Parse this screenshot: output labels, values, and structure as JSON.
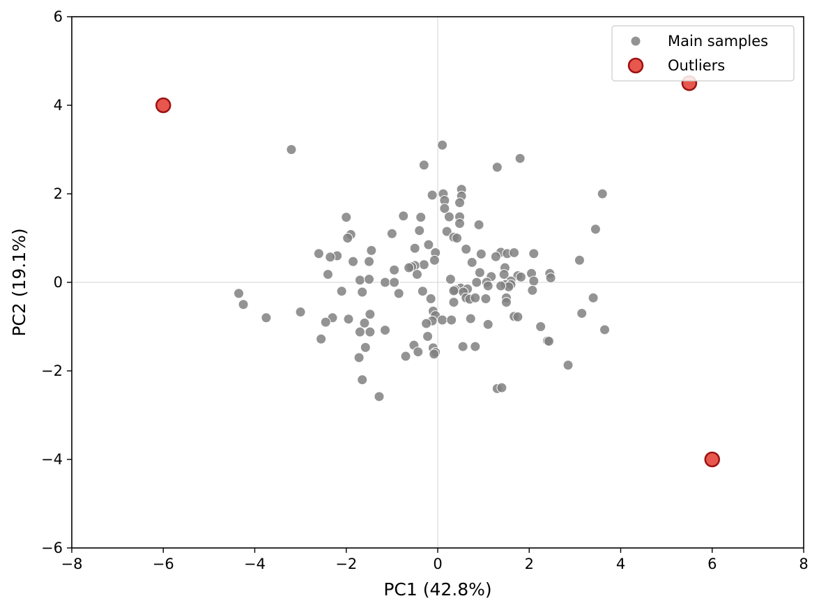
{
  "chart_data": {
    "type": "scatter",
    "xlabel": "PC1 (42.8%)",
    "ylabel": "PC2 (19.1%)",
    "xlim": [
      -8,
      8
    ],
    "ylim": [
      -6,
      6
    ],
    "x_ticks": [
      -8,
      -6,
      -4,
      -2,
      0,
      2,
      4,
      6,
      8
    ],
    "y_ticks": [
      -6,
      -4,
      -2,
      0,
      2,
      4,
      6
    ],
    "x_tick_labels": [
      "−8",
      "−6",
      "−4",
      "−2",
      "0",
      "2",
      "4",
      "6",
      "8"
    ],
    "y_tick_labels": [
      "−6",
      "−4",
      "−2",
      "0",
      "2",
      "4",
      "6"
    ],
    "grid": false,
    "zero_lines": true,
    "legend": "top-right",
    "series": [
      {
        "name": "Main samples",
        "color": "#808080",
        "points": [
          [
            -3.2,
            3.0
          ],
          [
            0.1,
            3.1
          ],
          [
            -0.3,
            2.65
          ],
          [
            1.3,
            2.6
          ],
          [
            1.8,
            2.8
          ],
          [
            3.6,
            2.0
          ],
          [
            0.52,
            2.1
          ],
          [
            0.12,
            2.0
          ],
          [
            -0.12,
            1.97
          ],
          [
            0.52,
            1.95
          ],
          [
            0.15,
            1.85
          ],
          [
            0.48,
            1.8
          ],
          [
            0.15,
            1.67
          ],
          [
            0.48,
            1.48
          ],
          [
            0.25,
            1.48
          ],
          [
            -2.0,
            1.47
          ],
          [
            -0.75,
            1.5
          ],
          [
            -0.37,
            1.47
          ],
          [
            0.9,
            1.3
          ],
          [
            0.48,
            1.33
          ],
          [
            -0.4,
            1.17
          ],
          [
            0.2,
            1.15
          ],
          [
            -1.0,
            1.1
          ],
          [
            -1.9,
            1.08
          ],
          [
            -1.97,
            1.0
          ],
          [
            0.35,
            1.02
          ],
          [
            0.42,
            1.0
          ],
          [
            3.45,
            1.2
          ],
          [
            -0.2,
            0.85
          ],
          [
            -0.5,
            0.77
          ],
          [
            -1.45,
            0.72
          ],
          [
            0.62,
            0.75
          ],
          [
            -0.05,
            0.67
          ],
          [
            1.38,
            0.68
          ],
          [
            1.52,
            0.65
          ],
          [
            1.67,
            0.67
          ],
          [
            2.1,
            0.65
          ],
          [
            0.95,
            0.64
          ],
          [
            -2.6,
            0.65
          ],
          [
            -2.2,
            0.6
          ],
          [
            -2.35,
            0.57
          ],
          [
            1.27,
            0.58
          ],
          [
            -0.07,
            0.5
          ],
          [
            3.1,
            0.5
          ],
          [
            -1.85,
            0.47
          ],
          [
            -1.5,
            0.47
          ],
          [
            0.75,
            0.45
          ],
          [
            -0.3,
            0.4
          ],
          [
            -0.5,
            0.38
          ],
          [
            -0.57,
            0.35
          ],
          [
            -0.63,
            0.33
          ],
          [
            1.47,
            0.33
          ],
          [
            -0.95,
            0.28
          ],
          [
            0.92,
            0.22
          ],
          [
            2.05,
            0.2
          ],
          [
            2.45,
            0.2
          ],
          [
            -2.4,
            0.18
          ],
          [
            1.45,
            0.18
          ],
          [
            1.75,
            0.15
          ],
          [
            1.82,
            0.12
          ],
          [
            -0.45,
            0.18
          ],
          [
            1.17,
            0.13
          ],
          [
            2.47,
            0.1
          ],
          [
            0.28,
            0.07
          ],
          [
            -1.7,
            0.05
          ],
          [
            -1.5,
            0.07
          ],
          [
            2.1,
            0.03
          ],
          [
            1.6,
            0.03
          ],
          [
            -1.15,
            0.0
          ],
          [
            -0.95,
            0.0
          ],
          [
            0.85,
            0.0
          ],
          [
            1.07,
            0.0
          ],
          [
            1.48,
            -0.05
          ],
          [
            1.6,
            -0.05
          ],
          [
            1.1,
            -0.08
          ],
          [
            1.55,
            -0.1
          ],
          [
            1.38,
            -0.08
          ],
          [
            0.5,
            -0.13
          ],
          [
            0.65,
            -0.15
          ],
          [
            0.38,
            -0.17
          ],
          [
            0.35,
            -0.19
          ],
          [
            -0.33,
            -0.2
          ],
          [
            0.56,
            -0.22
          ],
          [
            2.07,
            -0.18
          ],
          [
            -2.1,
            -0.2
          ],
          [
            -1.65,
            -0.22
          ],
          [
            -0.85,
            -0.25
          ],
          [
            -4.35,
            -0.25
          ],
          [
            0.62,
            -0.35
          ],
          [
            0.7,
            -0.38
          ],
          [
            0.82,
            -0.35
          ],
          [
            1.05,
            -0.37
          ],
          [
            1.5,
            -0.35
          ],
          [
            1.5,
            -0.45
          ],
          [
            -0.15,
            -0.37
          ],
          [
            0.35,
            -0.45
          ],
          [
            3.4,
            -0.35
          ],
          [
            -4.25,
            -0.5
          ],
          [
            -3.75,
            -0.8
          ],
          [
            -3.0,
            -0.67
          ],
          [
            -0.1,
            -0.65
          ],
          [
            -0.05,
            -0.75
          ],
          [
            3.15,
            -0.7
          ],
          [
            -1.48,
            -0.72
          ],
          [
            -2.3,
            -0.8
          ],
          [
            -1.95,
            -0.83
          ],
          [
            -0.12,
            -0.87
          ],
          [
            0.1,
            -0.85
          ],
          [
            0.3,
            -0.85
          ],
          [
            0.72,
            -0.82
          ],
          [
            1.67,
            -0.77
          ],
          [
            1.75,
            -0.78
          ],
          [
            -2.45,
            -0.9
          ],
          [
            -1.6,
            -0.92
          ],
          [
            -0.25,
            -0.93
          ],
          [
            1.1,
            -0.95
          ],
          [
            2.25,
            -1.0
          ],
          [
            3.65,
            -1.07
          ],
          [
            -1.7,
            -1.12
          ],
          [
            -1.48,
            -1.12
          ],
          [
            -1.15,
            -1.08
          ],
          [
            -0.22,
            -1.22
          ],
          [
            -2.55,
            -1.28
          ],
          [
            2.4,
            -1.32
          ],
          [
            2.43,
            -1.33
          ],
          [
            -0.52,
            -1.42
          ],
          [
            -0.1,
            -1.48
          ],
          [
            0.55,
            -1.45
          ],
          [
            0.82,
            -1.45
          ],
          [
            -1.58,
            -1.47
          ],
          [
            -0.43,
            -1.57
          ],
          [
            -0.05,
            -1.58
          ],
          [
            -0.08,
            -1.62
          ],
          [
            -0.7,
            -1.67
          ],
          [
            -1.72,
            -1.7
          ],
          [
            2.85,
            -1.87
          ],
          [
            -1.65,
            -2.2
          ],
          [
            1.3,
            -2.4
          ],
          [
            1.4,
            -2.38
          ],
          [
            -1.28,
            -2.58
          ]
        ]
      },
      {
        "name": "Outliers",
        "color": "#e8574d",
        "edge_color": "#9b1212",
        "points": [
          [
            -6,
            4
          ],
          [
            5.5,
            4.5
          ],
          [
            6,
            -4
          ]
        ]
      }
    ]
  }
}
